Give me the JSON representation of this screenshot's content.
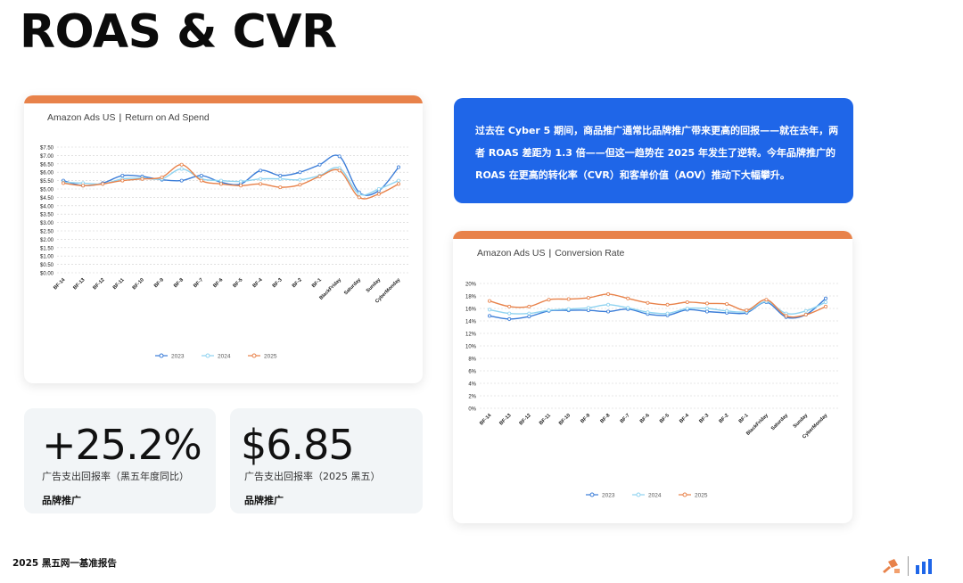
{
  "title": "ROAS & CVR",
  "callout": {
    "text": "过去在 Cyber 5 期间，商品推广通常比品牌推广带来更高的回报——就在去年，两者 ROAS 差距为 1.3 倍——但这一趋势在 2025 年发生了逆转。今年品牌推广的 ROAS 在更高的转化率（CVR）和客单价值（AOV）推动下大幅攀升。"
  },
  "kpis": [
    {
      "value": "+25.2%",
      "desc": "广告支出回报率（黑五年度同比）",
      "tag": "品牌推广"
    },
    {
      "value": "$6.85",
      "desc": "广告支出回报率（2025 黑五）",
      "tag": "品牌推广"
    }
  ],
  "footer": "2025 黑五网一基准报告",
  "colors": {
    "accent_bar": "#E8824A",
    "callout_bg": "#1F66E8",
    "kpi_bg": "#F2F5F7",
    "s2023": "#3B7DD8",
    "s2024": "#8FD3F0",
    "s2025": "#E8824A"
  },
  "chart_data": [
    {
      "type": "line",
      "title_left": "Amazon Ads US",
      "title_right": "Return on Ad Spend",
      "categories": [
        "BF-14",
        "BF-13",
        "BF-12",
        "BF-11",
        "BF-10",
        "BF-9",
        "BF-8",
        "BF-7",
        "BF-6",
        "BF-5",
        "BF-4",
        "BF-3",
        "BF-2",
        "BF-1",
        "BlackFriday",
        "Saturday",
        "Sunday",
        "CyberMonday"
      ],
      "ylim": [
        0,
        7.5
      ],
      "y_ticks": [
        "$0.00",
        "$0.50",
        "$1.00",
        "$1.50",
        "$2.00",
        "$2.50",
        "$3.00",
        "$3.50",
        "$4.00",
        "$4.50",
        "$5.00",
        "$5.50",
        "$6.00",
        "$6.50",
        "$7.00",
        "$7.50"
      ],
      "grid": true,
      "legend": "bottom",
      "series": [
        {
          "name": "2023",
          "color": "#3B7DD8",
          "values": [
            5.5,
            5.2,
            5.35,
            5.8,
            5.75,
            5.55,
            5.5,
            5.8,
            5.4,
            5.3,
            6.1,
            5.8,
            6.0,
            6.45,
            6.95,
            4.8,
            4.9,
            6.3
          ]
        },
        {
          "name": "2024",
          "color": "#8FD3F0",
          "values": [
            5.4,
            5.35,
            5.3,
            5.6,
            5.65,
            5.6,
            6.2,
            5.6,
            5.5,
            5.45,
            5.6,
            5.6,
            5.55,
            5.8,
            6.25,
            4.7,
            5.0,
            5.5
          ]
        },
        {
          "name": "2025",
          "color": "#E8824A",
          "values": [
            5.35,
            5.2,
            5.3,
            5.5,
            5.6,
            5.7,
            6.45,
            5.5,
            5.3,
            5.2,
            5.3,
            5.1,
            5.25,
            5.75,
            6.1,
            4.5,
            4.7,
            5.3
          ]
        }
      ]
    },
    {
      "type": "line",
      "title_left": "Amazon Ads US",
      "title_right": "Conversion Rate",
      "categories": [
        "BF-14",
        "BF-13",
        "BF-12",
        "BF-11",
        "BF-10",
        "BF-9",
        "BF-8",
        "BF-7",
        "BF-6",
        "BF-5",
        "BF-4",
        "BF-3",
        "BF-2",
        "BF-1",
        "BlackFriday",
        "Saturday",
        "Sunday",
        "CyberMonday"
      ],
      "ylim": [
        0,
        20
      ],
      "y_ticks": [
        "0%",
        "2%",
        "4%",
        "6%",
        "8%",
        "10%",
        "12%",
        "14%",
        "16%",
        "18%",
        "20%"
      ],
      "grid": true,
      "legend": "bottom",
      "series": [
        {
          "name": "2023",
          "color": "#3B7DD8",
          "values": [
            14.8,
            14.3,
            14.7,
            15.6,
            15.7,
            15.7,
            15.5,
            15.9,
            15.1,
            14.9,
            15.8,
            15.5,
            15.3,
            15.3,
            17.0,
            14.6,
            15.0,
            17.6
          ]
        },
        {
          "name": "2024",
          "color": "#8FD3F0",
          "values": [
            15.8,
            15.2,
            15.2,
            15.7,
            15.9,
            16.1,
            16.6,
            16.1,
            15.4,
            15.2,
            16.0,
            16.0,
            15.6,
            15.5,
            17.1,
            15.2,
            15.6,
            17.0
          ]
        },
        {
          "name": "2025",
          "color": "#E8824A",
          "values": [
            17.2,
            16.3,
            16.3,
            17.4,
            17.5,
            17.7,
            18.3,
            17.6,
            16.9,
            16.6,
            17.0,
            16.8,
            16.7,
            15.7,
            17.4,
            14.8,
            15.0,
            16.3
          ]
        }
      ]
    }
  ]
}
